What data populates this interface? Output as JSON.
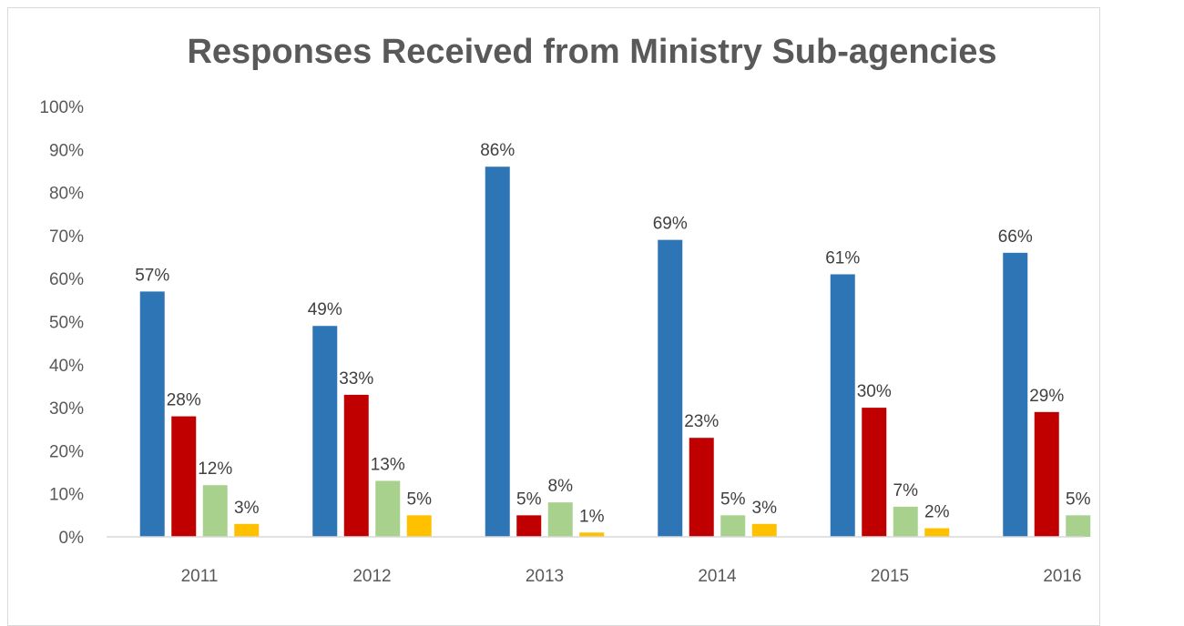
{
  "chart_data": {
    "type": "bar",
    "title": "Responses Received from Ministry Sub-agencies",
    "xlabel": "",
    "ylabel": "",
    "ylim": [
      0,
      100
    ],
    "yticks": [
      "0%",
      "10%",
      "20%",
      "30%",
      "40%",
      "50%",
      "60%",
      "70%",
      "80%",
      "90%",
      "100%"
    ],
    "grid": false,
    "categories": [
      "2011",
      "2012",
      "2013",
      "2014",
      "2015",
      "2016"
    ],
    "series": [
      {
        "values": [
          57,
          49,
          86,
          69,
          61,
          66
        ],
        "labels": [
          "57%",
          "49%",
          "86%",
          "69%",
          "61%",
          "66%"
        ],
        "color": "#2E75B6"
      },
      {
        "values": [
          28,
          33,
          5,
          23,
          30,
          29
        ],
        "labels": [
          "28%",
          "33%",
          "5%",
          "23%",
          "30%",
          "29%"
        ],
        "color": "#C00000"
      },
      {
        "values": [
          12,
          13,
          8,
          5,
          7,
          5
        ],
        "labels": [
          "12%",
          "13%",
          "8%",
          "5%",
          "7%",
          "5%"
        ],
        "color": "#A9D18E"
      },
      {
        "values": [
          3,
          5,
          1,
          3,
          2,
          null
        ],
        "labels": [
          "3%",
          "5%",
          "1%",
          "3%",
          "2%",
          ""
        ],
        "color": "#FFC000"
      }
    ]
  }
}
